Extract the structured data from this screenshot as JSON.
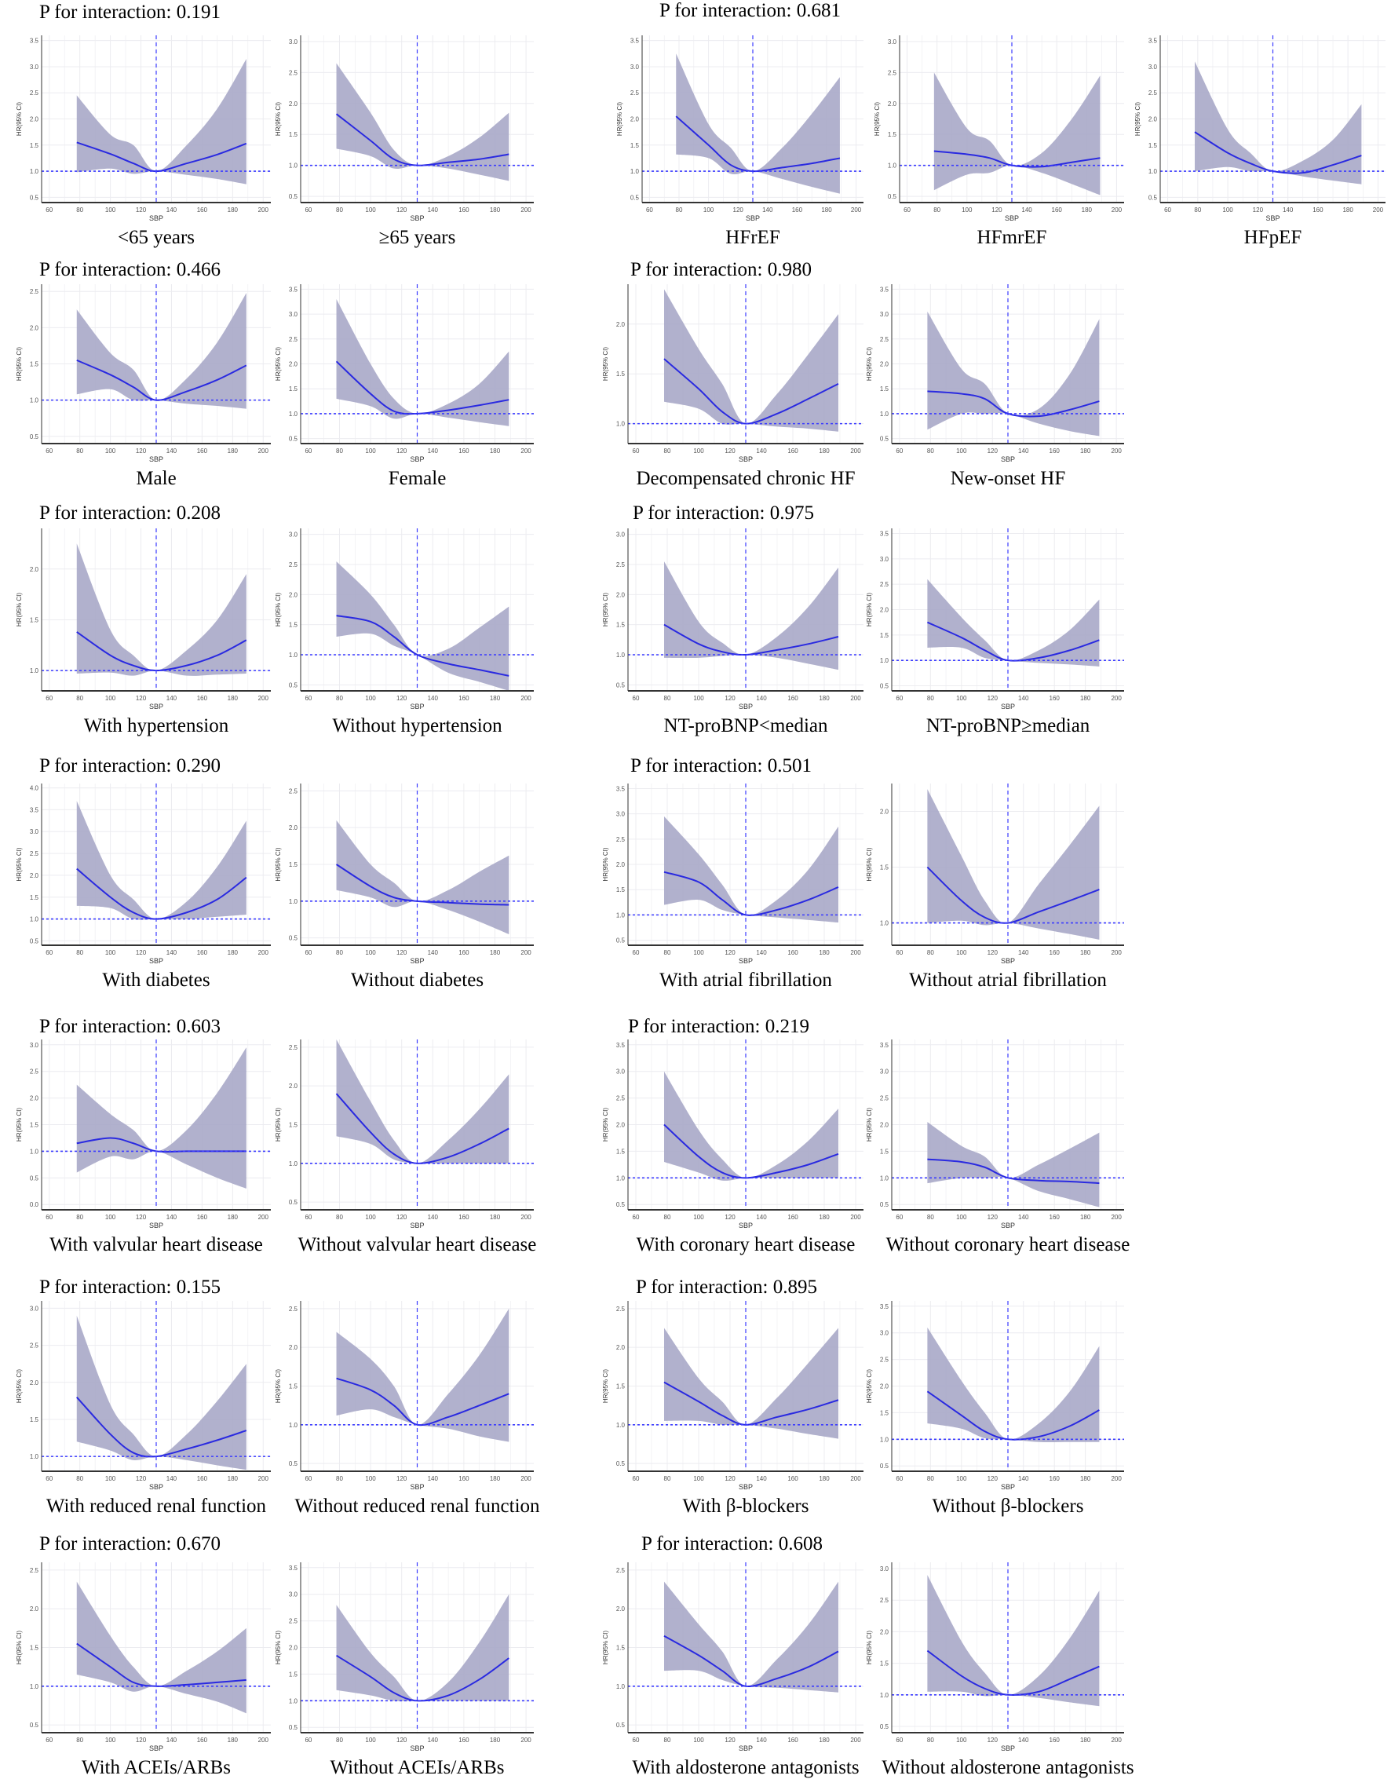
{
  "interactions": [
    {
      "label": "P for interaction: 0.191"
    },
    {
      "label": "P for interaction: 0.681"
    },
    {
      "label": "P for interaction: 0.466"
    },
    {
      "label": "P for interaction: 0.980"
    },
    {
      "label": "P for interaction: 0.208"
    },
    {
      "label": "P for interaction: 0.975"
    },
    {
      "label": "P for interaction: 0.290"
    },
    {
      "label": "P for interaction: 0.501"
    },
    {
      "label": "P for interaction: 0.603"
    },
    {
      "label": "P for interaction: 0.219"
    },
    {
      "label": "P for interaction: 0.155"
    },
    {
      "label": "P for interaction: 0.895"
    },
    {
      "label": "P for interaction: 0.670"
    },
    {
      "label": "P for interaction: 0.608"
    }
  ],
  "colors": {
    "band": "#a9a8c8",
    "line": "#2a2ae0",
    "reference": "#3b3bff",
    "grid": "#ececf0"
  },
  "chart_common": {
    "type": "line",
    "xlabel": "SBP",
    "ylabel": "HR(95% CI)",
    "xlim": [
      55,
      205
    ],
    "xticks": [
      "60",
      "80",
      "100",
      "120",
      "140",
      "160",
      "180",
      "200"
    ],
    "x": [
      78,
      100,
      115,
      130,
      150,
      170,
      189
    ],
    "reference_x": 130,
    "reference_y": 1.0,
    "grid": true
  },
  "chart_data": [
    {
      "title": "<65 years",
      "ylim": [
        0.4,
        3.6
      ],
      "yticks": [
        "0.5",
        "1.0",
        "1.5",
        "2.0",
        "2.5",
        "3.0",
        "3.5"
      ],
      "hr": [
        1.55,
        1.33,
        1.15,
        1.0,
        1.15,
        1.32,
        1.53
      ],
      "lower": [
        0.98,
        1.05,
        0.95,
        1.0,
        0.93,
        0.85,
        0.75
      ],
      "upper": [
        2.45,
        1.7,
        1.5,
        1.0,
        1.5,
        2.2,
        3.15
      ]
    },
    {
      "title": "≥65 years",
      "ylim": [
        0.4,
        3.1
      ],
      "yticks": [
        "0.5",
        "1.0",
        "1.5",
        "2.0",
        "2.5",
        "3.0"
      ],
      "hr": [
        1.83,
        1.4,
        1.1,
        1.0,
        1.05,
        1.1,
        1.18
      ],
      "lower": [
        1.27,
        1.15,
        0.95,
        1.0,
        0.95,
        0.85,
        0.75
      ],
      "upper": [
        2.65,
        1.85,
        1.25,
        1.0,
        1.15,
        1.45,
        1.85
      ]
    },
    {
      "title": "HFrEF",
      "ylim": [
        0.4,
        3.6
      ],
      "yticks": [
        "0.5",
        "1.0",
        "1.5",
        "2.0",
        "2.5",
        "3.0",
        "3.5"
      ],
      "hr": [
        2.05,
        1.5,
        1.12,
        1.0,
        1.07,
        1.15,
        1.25
      ],
      "lower": [
        1.32,
        1.25,
        0.95,
        1.0,
        0.85,
        0.7,
        0.57
      ],
      "upper": [
        3.25,
        1.9,
        1.45,
        1.0,
        1.45,
        2.1,
        2.8
      ]
    },
    {
      "title": "HFmrEF",
      "ylim": [
        0.4,
        3.1
      ],
      "yticks": [
        "0.5",
        "1.0",
        "1.5",
        "2.0",
        "2.5",
        "3.0"
      ],
      "hr": [
        1.23,
        1.18,
        1.12,
        1.0,
        0.98,
        1.05,
        1.12
      ],
      "lower": [
        0.6,
        0.85,
        0.88,
        1.0,
        0.88,
        0.7,
        0.52
      ],
      "upper": [
        2.5,
        1.6,
        1.4,
        1.0,
        1.2,
        1.75,
        2.45
      ]
    },
    {
      "title": "HFpEF",
      "ylim": [
        0.4,
        3.6
      ],
      "yticks": [
        "0.5",
        "1.0",
        "1.5",
        "2.0",
        "2.5",
        "3.0",
        "3.5"
      ],
      "hr": [
        1.75,
        1.35,
        1.15,
        1.0,
        0.97,
        1.12,
        1.3
      ],
      "lower": [
        1.0,
        1.08,
        1.0,
        1.0,
        0.9,
        0.82,
        0.75
      ],
      "upper": [
        3.1,
        1.8,
        1.35,
        1.0,
        1.2,
        1.6,
        2.28
      ]
    },
    {
      "title": "Male",
      "ylim": [
        0.4,
        2.6
      ],
      "yticks": [
        "0.5",
        "1.0",
        "1.5",
        "2.0",
        "2.5"
      ],
      "hr": [
        1.55,
        1.35,
        1.18,
        1.0,
        1.12,
        1.28,
        1.48
      ],
      "lower": [
        1.08,
        1.15,
        1.0,
        1.0,
        0.95,
        0.92,
        0.88
      ],
      "upper": [
        2.25,
        1.65,
        1.42,
        1.0,
        1.3,
        1.8,
        2.48
      ]
    },
    {
      "title": "Female",
      "ylim": [
        0.4,
        3.6
      ],
      "yticks": [
        "0.5",
        "1.0",
        "1.5",
        "2.0",
        "2.5",
        "3.0",
        "3.5"
      ],
      "hr": [
        2.05,
        1.4,
        1.05,
        1.0,
        1.07,
        1.17,
        1.28
      ],
      "lower": [
        1.3,
        1.15,
        0.9,
        1.0,
        0.92,
        0.83,
        0.75
      ],
      "upper": [
        3.3,
        2.0,
        1.3,
        1.0,
        1.2,
        1.6,
        2.25
      ]
    },
    {
      "title": "Decompensated chronic HF",
      "ylim": [
        0.8,
        2.4
      ],
      "yticks": [
        "1.0",
        "1.5",
        "2.0"
      ],
      "hr": [
        1.65,
        1.35,
        1.12,
        1.0,
        1.1,
        1.25,
        1.4
      ],
      "lower": [
        1.22,
        1.15,
        1.0,
        1.0,
        0.97,
        0.95,
        0.92
      ],
      "upper": [
        2.35,
        1.75,
        1.4,
        1.0,
        1.3,
        1.7,
        2.1
      ]
    },
    {
      "title": "New-onset HF",
      "ylim": [
        0.4,
        3.6
      ],
      "yticks": [
        "0.5",
        "1.0",
        "1.5",
        "2.0",
        "2.5",
        "3.0",
        "3.5"
      ],
      "hr": [
        1.45,
        1.4,
        1.3,
        1.0,
        0.95,
        1.08,
        1.25
      ],
      "lower": [
        0.68,
        1.0,
        1.0,
        1.0,
        0.8,
        0.65,
        0.55
      ],
      "upper": [
        3.05,
        1.9,
        1.6,
        1.0,
        1.1,
        1.8,
        2.9
      ]
    },
    {
      "title": "With hypertension",
      "ylim": [
        0.8,
        2.4
      ],
      "yticks": [
        "1.0",
        "1.5",
        "2.0"
      ],
      "hr": [
        1.38,
        1.15,
        1.05,
        1.0,
        1.05,
        1.15,
        1.3
      ],
      "lower": [
        0.97,
        0.98,
        0.95,
        1.0,
        0.95,
        0.96,
        0.97
      ],
      "upper": [
        2.25,
        1.4,
        1.15,
        1.0,
        1.2,
        1.5,
        1.95
      ]
    },
    {
      "title": "Without hypertension",
      "ylim": [
        0.4,
        3.1
      ],
      "yticks": [
        "0.5",
        "1.0",
        "1.5",
        "2.0",
        "2.5",
        "3.0"
      ],
      "hr": [
        1.65,
        1.55,
        1.3,
        1.0,
        0.85,
        0.75,
        0.65
      ],
      "lower": [
        1.3,
        1.35,
        1.15,
        1.0,
        0.7,
        0.55,
        0.4
      ],
      "upper": [
        2.55,
        2.0,
        1.5,
        1.0,
        1.1,
        1.45,
        1.8
      ]
    },
    {
      "title": "NT-proBNP<median",
      "ylim": [
        0.4,
        3.1
      ],
      "yticks": [
        "0.5",
        "1.0",
        "1.5",
        "2.0",
        "2.5",
        "3.0"
      ],
      "hr": [
        1.5,
        1.18,
        1.05,
        1.0,
        1.08,
        1.18,
        1.3
      ],
      "lower": [
        0.95,
        0.95,
        0.98,
        1.0,
        0.95,
        0.85,
        0.75
      ],
      "upper": [
        2.55,
        1.55,
        1.2,
        1.0,
        1.3,
        1.8,
        2.45
      ]
    },
    {
      "title": "NT-proBNP≥median",
      "ylim": [
        0.4,
        3.6
      ],
      "yticks": [
        "0.5",
        "1.0",
        "1.5",
        "2.0",
        "2.5",
        "3.0",
        "3.5"
      ],
      "hr": [
        1.75,
        1.45,
        1.2,
        1.0,
        1.05,
        1.2,
        1.4
      ],
      "lower": [
        1.25,
        1.25,
        1.05,
        1.0,
        0.95,
        0.92,
        0.88
      ],
      "upper": [
        2.6,
        1.85,
        1.4,
        1.0,
        1.2,
        1.6,
        2.2
      ]
    },
    {
      "title": "With diabetes",
      "ylim": [
        0.4,
        4.1
      ],
      "yticks": [
        "0.5",
        "1.0",
        "1.5",
        "2.0",
        "2.5",
        "3.0",
        "3.5",
        "4.0"
      ],
      "hr": [
        2.15,
        1.5,
        1.15,
        1.0,
        1.15,
        1.45,
        1.95
      ],
      "lower": [
        1.3,
        1.25,
        1.0,
        1.0,
        1.0,
        1.05,
        1.1
      ],
      "upper": [
        3.7,
        2.0,
        1.45,
        1.0,
        1.4,
        2.2,
        3.25
      ]
    },
    {
      "title": "Without diabetes",
      "ylim": [
        0.4,
        2.6
      ],
      "yticks": [
        "0.5",
        "1.0",
        "1.5",
        "2.0",
        "2.5"
      ],
      "hr": [
        1.5,
        1.2,
        1.05,
        1.0,
        0.98,
        0.96,
        0.95
      ],
      "lower": [
        1.15,
        1.05,
        0.92,
        1.0,
        0.88,
        0.72,
        0.55
      ],
      "upper": [
        2.1,
        1.5,
        1.25,
        1.0,
        1.15,
        1.4,
        1.62
      ]
    },
    {
      "title": "With atrial fibrillation",
      "ylim": [
        0.4,
        3.6
      ],
      "yticks": [
        "0.5",
        "1.0",
        "1.5",
        "2.0",
        "2.5",
        "3.0",
        "3.5"
      ],
      "hr": [
        1.85,
        1.65,
        1.3,
        1.0,
        1.1,
        1.3,
        1.55
      ],
      "lower": [
        1.2,
        1.3,
        1.1,
        1.0,
        0.95,
        0.9,
        0.85
      ],
      "upper": [
        2.95,
        2.2,
        1.6,
        1.0,
        1.3,
        1.9,
        2.75
      ]
    },
    {
      "title": "Without atrial fibrillation",
      "ylim": [
        0.8,
        2.25
      ],
      "yticks": [
        "1.0",
        "1.5",
        "2.0"
      ],
      "hr": [
        1.5,
        1.2,
        1.05,
        1.0,
        1.1,
        1.2,
        1.3
      ],
      "lower": [
        1.0,
        1.02,
        0.98,
        1.0,
        0.95,
        0.9,
        0.85
      ],
      "upper": [
        2.2,
        1.6,
        1.2,
        1.0,
        1.35,
        1.7,
        2.05
      ]
    },
    {
      "title": "With valvular heart disease",
      "ylim": [
        -0.1,
        3.1
      ],
      "yticks": [
        "0.0",
        "0.5",
        "1.0",
        "1.5",
        "2.0",
        "2.5",
        "3.0"
      ],
      "hr": [
        1.15,
        1.25,
        1.15,
        1.0,
        1.0,
        1.0,
        1.0
      ],
      "lower": [
        0.6,
        0.9,
        0.85,
        1.0,
        0.75,
        0.5,
        0.3
      ],
      "upper": [
        2.25,
        1.7,
        1.4,
        1.0,
        1.4,
        2.1,
        2.95
      ]
    },
    {
      "title": "Without valvular heart disease",
      "ylim": [
        0.4,
        2.6
      ],
      "yticks": [
        "0.5",
        "1.0",
        "1.5",
        "2.0",
        "2.5"
      ],
      "hr": [
        1.9,
        1.4,
        1.12,
        1.0,
        1.08,
        1.25,
        1.45
      ],
      "lower": [
        1.35,
        1.25,
        1.05,
        1.0,
        1.0,
        1.0,
        1.0
      ],
      "upper": [
        2.6,
        1.8,
        1.3,
        1.0,
        1.3,
        1.7,
        2.15
      ]
    },
    {
      "title": "With coronary heart disease",
      "ylim": [
        0.4,
        3.6
      ],
      "yticks": [
        "0.5",
        "1.0",
        "1.5",
        "2.0",
        "2.5",
        "3.0",
        "3.5"
      ],
      "hr": [
        2.0,
        1.4,
        1.1,
        1.0,
        1.1,
        1.25,
        1.45
      ],
      "lower": [
        1.3,
        1.1,
        0.95,
        1.0,
        1.0,
        1.0,
        1.0
      ],
      "upper": [
        3.0,
        1.9,
        1.35,
        1.0,
        1.25,
        1.7,
        2.3
      ]
    },
    {
      "title": "Without coronary heart disease",
      "ylim": [
        0.4,
        3.6
      ],
      "yticks": [
        "0.5",
        "1.0",
        "1.5",
        "2.0",
        "2.5",
        "3.0",
        "3.5"
      ],
      "hr": [
        1.35,
        1.3,
        1.2,
        1.0,
        0.95,
        0.93,
        0.9
      ],
      "lower": [
        0.9,
        1.0,
        1.0,
        1.0,
        0.75,
        0.6,
        0.45
      ],
      "upper": [
        2.05,
        1.6,
        1.4,
        1.0,
        1.25,
        1.55,
        1.85
      ]
    },
    {
      "title": "With reduced renal function",
      "ylim": [
        0.8,
        3.1
      ],
      "yticks": [
        "1.0",
        "1.5",
        "2.0",
        "2.5",
        "3.0"
      ],
      "hr": [
        1.8,
        1.3,
        1.05,
        1.0,
        1.1,
        1.22,
        1.35
      ],
      "lower": [
        1.2,
        1.08,
        0.95,
        1.0,
        0.95,
        0.88,
        0.82
      ],
      "upper": [
        2.9,
        1.7,
        1.3,
        1.0,
        1.3,
        1.75,
        2.25
      ]
    },
    {
      "title": "Without reduced renal function",
      "ylim": [
        0.4,
        2.6
      ],
      "yticks": [
        "0.5",
        "1.0",
        "1.5",
        "2.0",
        "2.5"
      ],
      "hr": [
        1.6,
        1.45,
        1.25,
        1.0,
        1.1,
        1.25,
        1.4
      ],
      "lower": [
        1.12,
        1.2,
        1.1,
        1.0,
        0.95,
        0.85,
        0.78
      ],
      "upper": [
        2.2,
        1.85,
        1.5,
        1.0,
        1.4,
        1.9,
        2.5
      ]
    },
    {
      "title": "With β-blockers",
      "ylim": [
        0.4,
        2.6
      ],
      "yticks": [
        "0.5",
        "1.0",
        "1.5",
        "2.0",
        "2.5"
      ],
      "hr": [
        1.55,
        1.3,
        1.12,
        1.0,
        1.1,
        1.2,
        1.32
      ],
      "lower": [
        1.05,
        1.05,
        1.0,
        1.0,
        0.95,
        0.88,
        0.82
      ],
      "upper": [
        2.25,
        1.6,
        1.3,
        1.0,
        1.35,
        1.8,
        2.25
      ]
    },
    {
      "title": "Without β-blockers",
      "ylim": [
        0.4,
        3.6
      ],
      "yticks": [
        "0.5",
        "1.0",
        "1.5",
        "2.0",
        "2.5",
        "3.0",
        "3.5"
      ],
      "hr": [
        1.9,
        1.45,
        1.15,
        1.0,
        1.05,
        1.25,
        1.55
      ],
      "lower": [
        1.3,
        1.2,
        1.02,
        1.0,
        0.95,
        0.95,
        0.95
      ],
      "upper": [
        3.1,
        2.1,
        1.5,
        1.0,
        1.3,
        1.9,
        2.75
      ]
    },
    {
      "title": "With ACEIs/ARBs",
      "ylim": [
        0.4,
        2.6
      ],
      "yticks": [
        "0.5",
        "1.0",
        "1.5",
        "2.0",
        "2.5"
      ],
      "hr": [
        1.55,
        1.25,
        1.05,
        1.0,
        1.02,
        1.05,
        1.08
      ],
      "lower": [
        1.15,
        1.05,
        0.93,
        1.0,
        0.9,
        0.8,
        0.65
      ],
      "upper": [
        2.35,
        1.65,
        1.25,
        1.0,
        1.2,
        1.45,
        1.75
      ]
    },
    {
      "title": "Without ACEIs/ARBs",
      "ylim": [
        0.4,
        3.6
      ],
      "yticks": [
        "0.5",
        "1.0",
        "1.5",
        "2.0",
        "2.5",
        "3.0",
        "3.5"
      ],
      "hr": [
        1.85,
        1.45,
        1.15,
        1.0,
        1.1,
        1.4,
        1.8
      ],
      "lower": [
        1.2,
        1.1,
        1.0,
        1.0,
        1.0,
        1.0,
        1.0
      ],
      "upper": [
        2.8,
        1.9,
        1.45,
        1.0,
        1.35,
        2.1,
        3.0
      ]
    },
    {
      "title": "With aldosterone antagonists",
      "ylim": [
        0.4,
        2.6
      ],
      "yticks": [
        "0.5",
        "1.0",
        "1.5",
        "2.0",
        "2.5"
      ],
      "hr": [
        1.65,
        1.4,
        1.2,
        1.0,
        1.1,
        1.25,
        1.45
      ],
      "lower": [
        1.2,
        1.2,
        1.08,
        1.0,
        0.98,
        0.95,
        0.92
      ],
      "upper": [
        2.35,
        1.8,
        1.45,
        1.0,
        1.35,
        1.8,
        2.35
      ]
    },
    {
      "title": "Without aldosterone antagonists",
      "ylim": [
        0.4,
        3.1
      ],
      "yticks": [
        "0.5",
        "1.0",
        "1.5",
        "2.0",
        "2.5",
        "3.0"
      ],
      "hr": [
        1.7,
        1.3,
        1.1,
        1.0,
        1.05,
        1.25,
        1.45
      ],
      "lower": [
        1.05,
        1.05,
        0.98,
        1.0,
        0.95,
        0.88,
        0.82
      ],
      "upper": [
        2.9,
        1.85,
        1.35,
        1.0,
        1.3,
        1.9,
        2.65
      ]
    }
  ]
}
